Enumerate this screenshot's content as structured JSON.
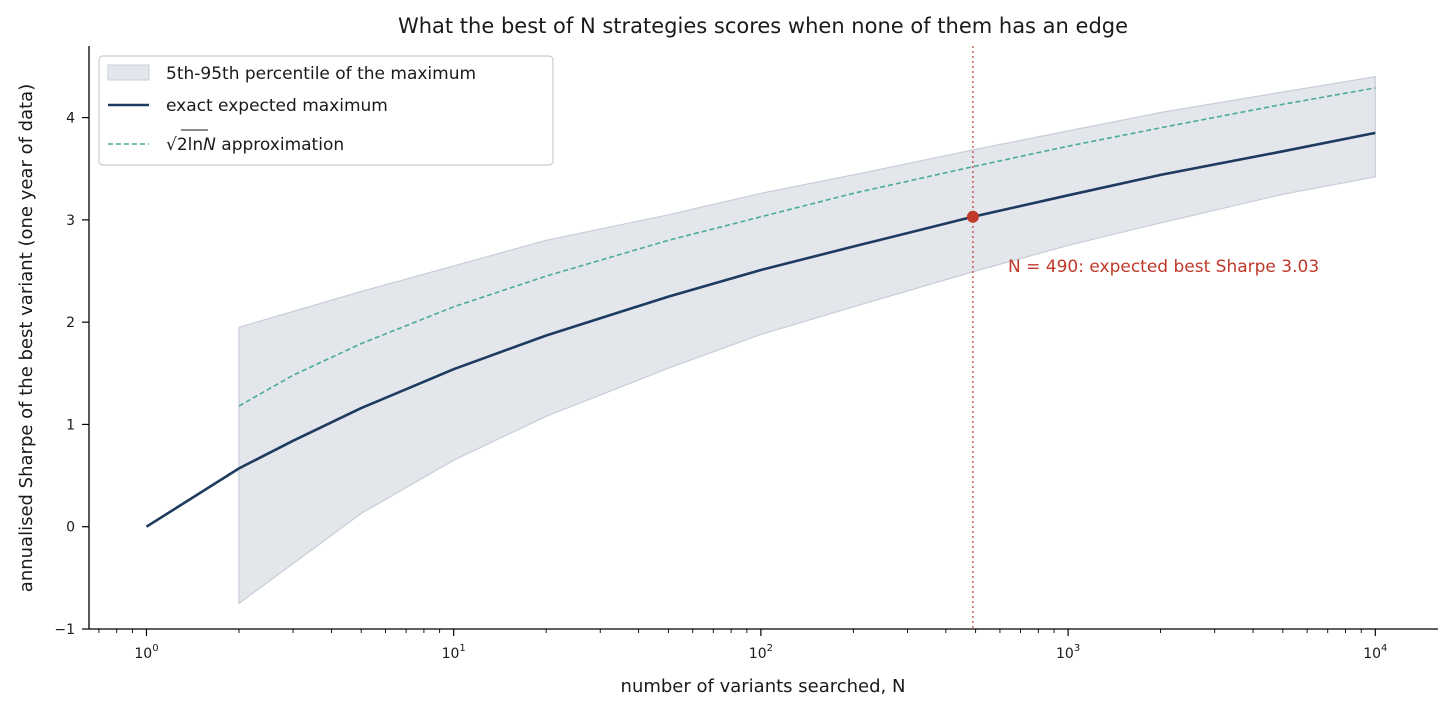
{
  "chart_data": {
    "type": "line",
    "title": "What the best of N strategies scores when none of them has an edge",
    "xlabel": "number of variants searched, N",
    "ylabel": "annualised Sharpe of the best variant (one year of data)",
    "xscale": "log",
    "xlim": [
      0.65,
      16000
    ],
    "ylim": [
      -1.0,
      4.7
    ],
    "x_ticks": [
      {
        "value": 1,
        "base": "10",
        "exp": "0"
      },
      {
        "value": 10,
        "base": "10",
        "exp": "1"
      },
      {
        "value": 100,
        "base": "10",
        "exp": "2"
      },
      {
        "value": 1000,
        "base": "10",
        "exp": "3"
      },
      {
        "value": 10000,
        "base": "10",
        "exp": "4"
      }
    ],
    "y_ticks": [
      {
        "value": -1,
        "label": "−1"
      },
      {
        "value": 0,
        "label": "0"
      },
      {
        "value": 1,
        "label": "1"
      },
      {
        "value": 2,
        "label": "2"
      },
      {
        "value": 3,
        "label": "3"
      },
      {
        "value": 4,
        "label": "4"
      }
    ],
    "band": {
      "name": "5th-95th percentile of the maximum",
      "color": "#c8ced8",
      "x": [
        2,
        5,
        10,
        20,
        50,
        100,
        200,
        500,
        1000,
        2000,
        5000,
        10000
      ],
      "lower": [
        -0.75,
        0.13,
        0.65,
        1.08,
        1.55,
        1.88,
        2.15,
        2.5,
        2.75,
        2.97,
        3.25,
        3.42
      ],
      "upper": [
        1.95,
        2.3,
        2.55,
        2.8,
        3.05,
        3.26,
        3.44,
        3.69,
        3.87,
        4.05,
        4.25,
        4.4
      ]
    },
    "series": [
      {
        "name": "exact expected maximum",
        "color": "#1d3a5f",
        "style": "solid",
        "x": [
          1,
          2,
          3,
          5,
          10,
          20,
          50,
          100,
          200,
          490,
          1000,
          2000,
          5000,
          10000
        ],
        "y": [
          0.0,
          0.57,
          0.84,
          1.16,
          1.54,
          1.87,
          2.25,
          2.51,
          2.74,
          3.03,
          3.24,
          3.44,
          3.67,
          3.85
        ]
      },
      {
        "name": "√2lnN approximation",
        "legend_prefix": "√",
        "legend_radicand": "2ln",
        "legend_var": "N",
        "legend_suffix": " approximation",
        "color": "#4aab9a",
        "style": "dashed",
        "x": [
          2,
          3,
          5,
          10,
          20,
          50,
          100,
          200,
          490,
          1000,
          2000,
          5000,
          10000
        ],
        "y": [
          1.18,
          1.48,
          1.79,
          2.15,
          2.45,
          2.8,
          3.03,
          3.26,
          3.52,
          3.72,
          3.9,
          4.13,
          4.29
        ]
      }
    ],
    "annotation": {
      "x": 490,
      "y": 3.03,
      "text": "N = 490: expected best Sharpe 3.03",
      "color": "#c0392b"
    },
    "legend_position": "upper-left",
    "grid": false
  }
}
